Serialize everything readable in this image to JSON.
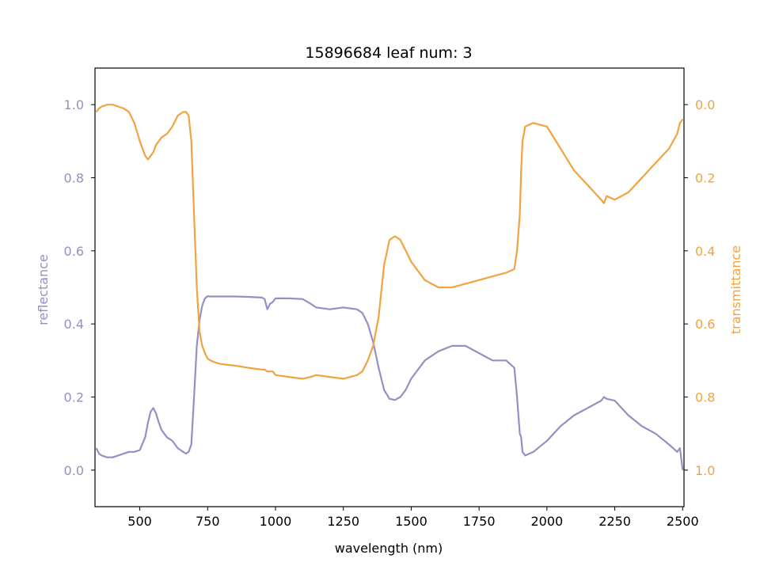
{
  "chart_data": {
    "type": "line",
    "title": "15896684 leaf num: 3",
    "xlabel": "wavelength (nm)",
    "ylabel_left": "reflectance",
    "ylabel_right": "transmittance",
    "xlim": [
      335,
      2505
    ],
    "ylim_left": [
      -0.1,
      1.1
    ],
    "ylim_right_inverted": [
      1.1,
      -0.1
    ],
    "xticks": [
      "500",
      "750",
      "1000",
      "1250",
      "1500",
      "1750",
      "2000",
      "2250",
      "2500"
    ],
    "yticks_left": [
      "0.0",
      "0.2",
      "0.4",
      "0.6",
      "0.8",
      "1.0"
    ],
    "yticks_right": [
      "0.0",
      "0.2",
      "0.4",
      "0.6",
      "0.8",
      "1.0"
    ],
    "grid": false,
    "colors": {
      "reflectance": "#998ec3",
      "transmittance": "#f1a340"
    },
    "series": [
      {
        "name": "reflectance",
        "axis": "left",
        "x": [
          340,
          350,
          360,
          380,
          400,
          420,
          440,
          460,
          480,
          500,
          520,
          530,
          540,
          550,
          560,
          570,
          580,
          590,
          600,
          620,
          640,
          660,
          670,
          680,
          690,
          700,
          710,
          720,
          730,
          740,
          750,
          760,
          800,
          850,
          900,
          950,
          960,
          970,
          980,
          990,
          1000,
          1050,
          1100,
          1130,
          1150,
          1200,
          1250,
          1300,
          1320,
          1340,
          1360,
          1380,
          1400,
          1420,
          1440,
          1460,
          1480,
          1500,
          1550,
          1600,
          1650,
          1700,
          1750,
          1800,
          1850,
          1880,
          1890,
          1900,
          1905,
          1910,
          1920,
          1950,
          2000,
          2050,
          2100,
          2150,
          2200,
          2210,
          2220,
          2250,
          2300,
          2350,
          2400,
          2450,
          2480,
          2490,
          2500
        ],
        "y": [
          0.06,
          0.045,
          0.04,
          0.035,
          0.035,
          0.04,
          0.045,
          0.05,
          0.05,
          0.055,
          0.09,
          0.13,
          0.16,
          0.17,
          0.155,
          0.13,
          0.11,
          0.1,
          0.09,
          0.08,
          0.06,
          0.05,
          0.045,
          0.05,
          0.07,
          0.2,
          0.34,
          0.41,
          0.45,
          0.47,
          0.476,
          0.475,
          0.475,
          0.475,
          0.474,
          0.472,
          0.468,
          0.44,
          0.455,
          0.46,
          0.47,
          0.47,
          0.468,
          0.455,
          0.445,
          0.44,
          0.445,
          0.44,
          0.43,
          0.4,
          0.35,
          0.28,
          0.22,
          0.195,
          0.192,
          0.2,
          0.22,
          0.25,
          0.3,
          0.325,
          0.34,
          0.34,
          0.32,
          0.3,
          0.3,
          0.28,
          0.2,
          0.1,
          0.09,
          0.05,
          0.04,
          0.05,
          0.08,
          0.12,
          0.15,
          0.17,
          0.19,
          0.2,
          0.195,
          0.19,
          0.15,
          0.12,
          0.1,
          0.07,
          0.05,
          0.06,
          0.0
        ]
      },
      {
        "name": "transmittance",
        "axis": "right",
        "x": [
          340,
          350,
          360,
          380,
          400,
          420,
          440,
          460,
          480,
          500,
          510,
          520,
          530,
          540,
          550,
          560,
          570,
          580,
          600,
          620,
          640,
          660,
          670,
          680,
          690,
          700,
          710,
          720,
          730,
          740,
          750,
          760,
          780,
          800,
          850,
          900,
          950,
          960,
          970,
          980,
          990,
          1000,
          1050,
          1100,
          1130,
          1150,
          1200,
          1250,
          1300,
          1320,
          1340,
          1360,
          1380,
          1400,
          1420,
          1440,
          1460,
          1480,
          1500,
          1550,
          1600,
          1650,
          1700,
          1750,
          1800,
          1850,
          1880,
          1890,
          1900,
          1905,
          1910,
          1920,
          1950,
          2000,
          2050,
          2100,
          2150,
          2200,
          2210,
          2220,
          2250,
          2300,
          2350,
          2400,
          2450,
          2480,
          2490,
          2500
        ],
        "y": [
          0.02,
          0.01,
          0.005,
          0.0,
          0.0,
          0.005,
          0.01,
          0.02,
          0.05,
          0.1,
          0.12,
          0.14,
          0.15,
          0.14,
          0.13,
          0.11,
          0.1,
          0.09,
          0.08,
          0.06,
          0.03,
          0.02,
          0.02,
          0.03,
          0.1,
          0.3,
          0.5,
          0.62,
          0.66,
          0.68,
          0.695,
          0.7,
          0.706,
          0.71,
          0.714,
          0.72,
          0.725,
          0.725,
          0.73,
          0.73,
          0.73,
          0.74,
          0.745,
          0.75,
          0.745,
          0.74,
          0.745,
          0.75,
          0.74,
          0.73,
          0.7,
          0.66,
          0.58,
          0.44,
          0.37,
          0.36,
          0.37,
          0.4,
          0.43,
          0.48,
          0.5,
          0.5,
          0.49,
          0.48,
          0.47,
          0.46,
          0.45,
          0.4,
          0.3,
          0.18,
          0.1,
          0.06,
          0.05,
          0.06,
          0.12,
          0.18,
          0.22,
          0.26,
          0.27,
          0.25,
          0.26,
          0.24,
          0.2,
          0.16,
          0.12,
          0.08,
          0.05,
          0.04
        ]
      }
    ]
  }
}
